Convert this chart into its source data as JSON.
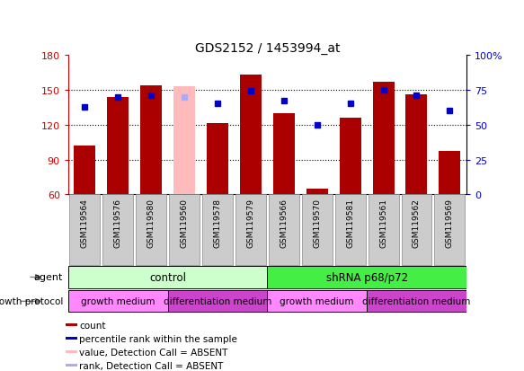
{
  "title": "GDS2152 / 1453994_at",
  "samples": [
    "GSM119564",
    "GSM119576",
    "GSM119580",
    "GSM119560",
    "GSM119578",
    "GSM119579",
    "GSM119566",
    "GSM119570",
    "GSM119581",
    "GSM119561",
    "GSM119562",
    "GSM119569"
  ],
  "bar_values": [
    102,
    144,
    154,
    153,
    121,
    163,
    130,
    65,
    126,
    157,
    146,
    97
  ],
  "bar_colors": [
    "#aa0000",
    "#aa0000",
    "#aa0000",
    "#ffbbbb",
    "#aa0000",
    "#aa0000",
    "#aa0000",
    "#aa0000",
    "#aa0000",
    "#aa0000",
    "#aa0000",
    "#aa0000"
  ],
  "percentile_values": [
    63,
    70,
    71,
    70,
    65,
    74,
    67,
    50,
    65,
    75,
    71,
    60
  ],
  "percentile_absent": [
    false,
    false,
    false,
    true,
    false,
    false,
    false,
    false,
    false,
    false,
    false,
    false
  ],
  "ymin": 60,
  "ymax": 180,
  "yticks": [
    60,
    90,
    120,
    150,
    180
  ],
  "yticks_right": [
    0,
    25,
    50,
    75,
    100
  ],
  "agent_groups": [
    {
      "label": "control",
      "start": 0,
      "end": 6,
      "color": "#ccffcc"
    },
    {
      "label": "shRNA p68/p72",
      "start": 6,
      "end": 12,
      "color": "#44ee44"
    }
  ],
  "growth_groups": [
    {
      "label": "growth medium",
      "start": 0,
      "end": 3,
      "color": "#ff88ff"
    },
    {
      "label": "differentiation medium",
      "start": 3,
      "end": 6,
      "color": "#cc44cc"
    },
    {
      "label": "growth medium",
      "start": 6,
      "end": 9,
      "color": "#ff88ff"
    },
    {
      "label": "differentiation medium",
      "start": 9,
      "end": 12,
      "color": "#cc44cc"
    }
  ],
  "legend_items": [
    {
      "label": "count",
      "color": "#aa0000"
    },
    {
      "label": "percentile rank within the sample",
      "color": "#0000cc"
    },
    {
      "label": "value, Detection Call = ABSENT",
      "color": "#ffbbbb"
    },
    {
      "label": "rank, Detection Call = ABSENT",
      "color": "#aaaaff"
    }
  ],
  "bar_color_normal": "#aa0000",
  "bar_color_absent": "#ffbbbb",
  "dot_color_normal": "#0000cc",
  "dot_color_absent": "#aaaaff",
  "tick_color_left": "#cc0000",
  "tick_color_right": "#0000cc",
  "xlabels_bg": "#cccccc",
  "xlabels_edge": "#888888"
}
